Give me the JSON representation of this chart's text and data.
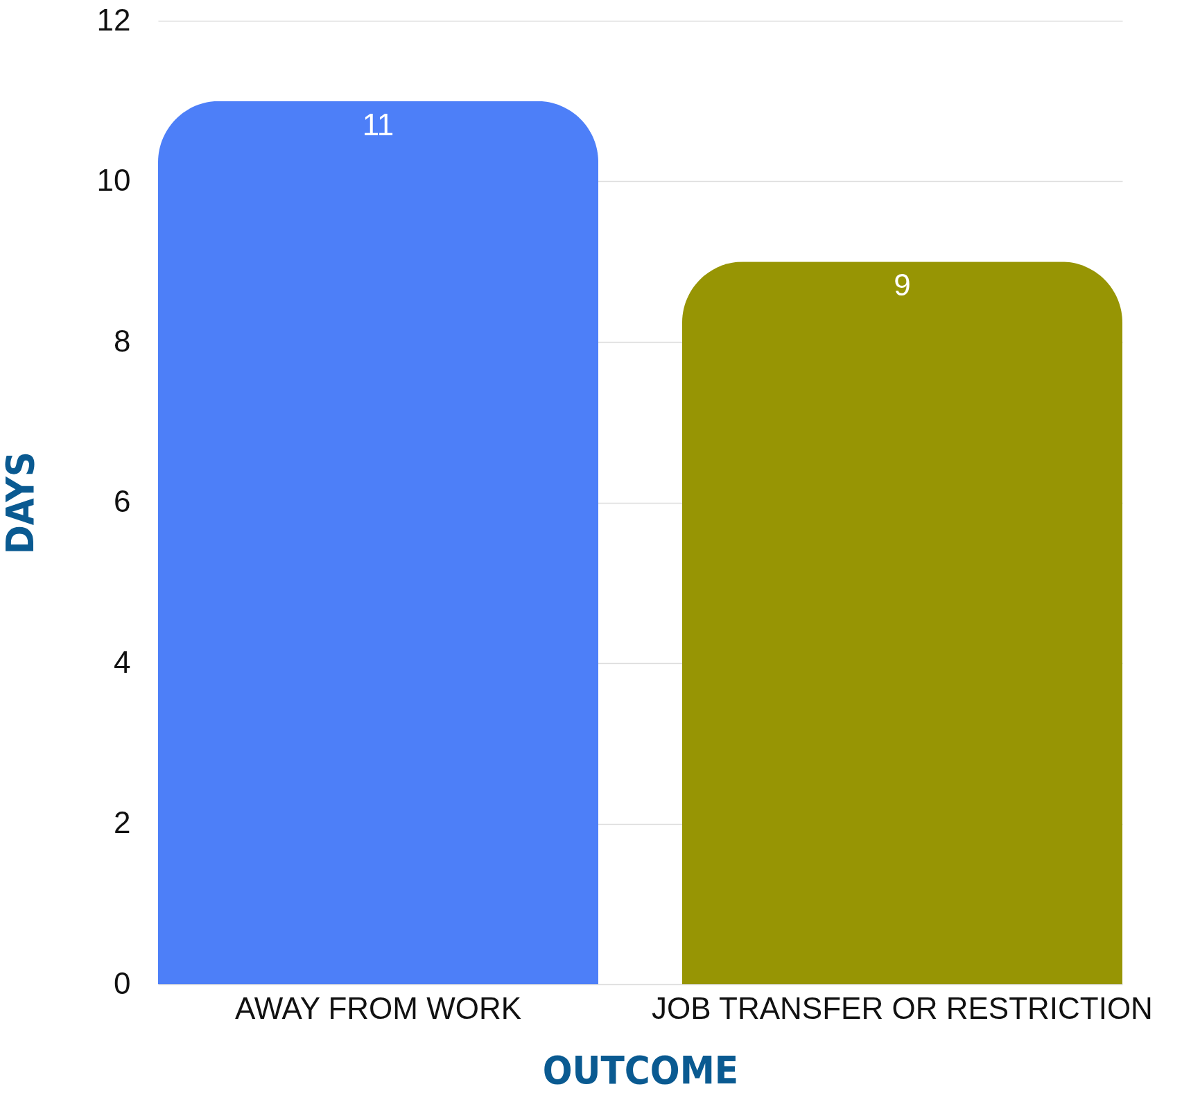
{
  "chart_data": {
    "type": "bar",
    "xlabel": "OUTCOME",
    "ylabel": "DAYS",
    "categories": [
      "AWAY FROM WORK",
      "JOB TRANSFER OR RESTRICTION"
    ],
    "values": [
      11,
      9
    ],
    "colors": [
      "#4d7ff8",
      "#979504"
    ],
    "ylim": [
      0,
      12
    ],
    "yticks": [
      0,
      2,
      4,
      6,
      8,
      10,
      12
    ],
    "grid": "y",
    "data_labels": true
  }
}
